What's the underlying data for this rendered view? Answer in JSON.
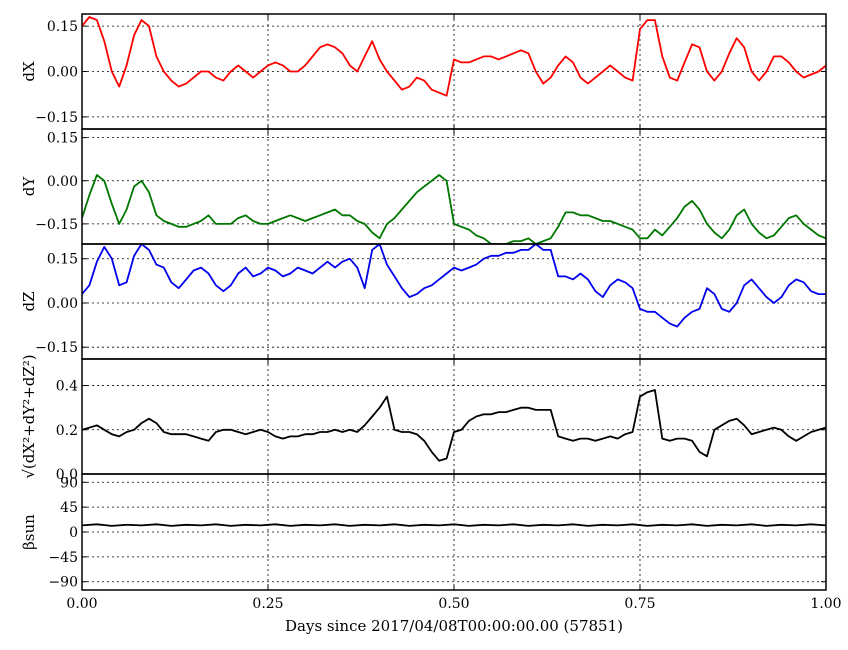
{
  "chart_data": {
    "type": "line",
    "xlabel": "Days since 2017/04/08T00:00:00.00 (57851)",
    "xlim": [
      0,
      1
    ],
    "xticks": [
      "0.00",
      "0.25",
      "0.50",
      "0.75",
      "1.00"
    ],
    "xtick_values": [
      0,
      0.25,
      0.5,
      0.75,
      1.0
    ],
    "grid": true,
    "panels": [
      {
        "ylabel": "dX",
        "color": "#ff0000",
        "ylim": [
          -0.19,
          0.19
        ],
        "yticks": [
          "0.15",
          "0.00",
          "−0.15"
        ],
        "ytick_values": [
          0.15,
          0.0,
          -0.15
        ],
        "x": [
          0.0,
          0.01,
          0.02,
          0.03,
          0.04,
          0.05,
          0.06,
          0.07,
          0.08,
          0.09,
          0.1,
          0.11,
          0.12,
          0.13,
          0.14,
          0.15,
          0.16,
          0.17,
          0.18,
          0.19,
          0.2,
          0.21,
          0.22,
          0.23,
          0.24,
          0.25,
          0.26,
          0.27,
          0.28,
          0.29,
          0.3,
          0.31,
          0.32,
          0.33,
          0.34,
          0.35,
          0.36,
          0.37,
          0.38,
          0.39,
          0.4,
          0.41,
          0.42,
          0.43,
          0.44,
          0.45,
          0.46,
          0.47,
          0.48,
          0.49,
          0.5,
          0.51,
          0.52,
          0.53,
          0.54,
          0.55,
          0.56,
          0.57,
          0.58,
          0.59,
          0.6,
          0.61,
          0.62,
          0.63,
          0.64,
          0.65,
          0.66,
          0.67,
          0.68,
          0.69,
          0.7,
          0.71,
          0.72,
          0.73,
          0.74,
          0.75,
          0.76,
          0.77,
          0.78,
          0.79,
          0.8,
          0.81,
          0.82,
          0.83,
          0.84,
          0.85,
          0.86,
          0.87,
          0.88,
          0.89,
          0.9,
          0.91,
          0.92,
          0.93,
          0.94,
          0.95,
          0.96,
          0.97,
          0.98,
          0.99,
          1.0
        ],
        "y": [
          0.15,
          0.18,
          0.17,
          0.1,
          0.0,
          -0.05,
          0.02,
          0.12,
          0.17,
          0.15,
          0.05,
          0.0,
          -0.03,
          -0.05,
          -0.04,
          -0.02,
          0.0,
          0.0,
          -0.02,
          -0.03,
          0.0,
          0.02,
          0.0,
          -0.02,
          0.0,
          0.02,
          0.03,
          0.02,
          0.0,
          0.0,
          0.02,
          0.05,
          0.08,
          0.09,
          0.08,
          0.06,
          0.02,
          0.0,
          0.05,
          0.1,
          0.04,
          0.0,
          -0.03,
          -0.06,
          -0.05,
          -0.02,
          -0.03,
          -0.06,
          -0.07,
          -0.08,
          0.04,
          0.03,
          0.03,
          0.04,
          0.05,
          0.05,
          0.04,
          0.05,
          0.06,
          0.07,
          0.06,
          0.0,
          -0.04,
          -0.02,
          0.02,
          0.05,
          0.03,
          -0.02,
          -0.04,
          -0.02,
          0.0,
          0.02,
          0.0,
          -0.02,
          -0.03,
          0.14,
          0.17,
          0.17,
          0.05,
          -0.02,
          -0.03,
          0.03,
          0.09,
          0.08,
          0.0,
          -0.03,
          0.0,
          0.06,
          0.11,
          0.08,
          0.0,
          -0.03,
          0.0,
          0.05,
          0.05,
          0.03,
          0.0,
          -0.02,
          -0.01,
          0.0,
          0.02
        ]
      },
      {
        "ylabel": "dY",
        "color": "#007700",
        "ylim": [
          -0.22,
          0.18
        ],
        "yticks": [
          "0.15",
          "0.00",
          "−0.15"
        ],
        "ytick_values": [
          0.15,
          0.0,
          -0.15
        ],
        "x": [
          0.0,
          0.01,
          0.02,
          0.03,
          0.04,
          0.05,
          0.06,
          0.07,
          0.08,
          0.09,
          0.1,
          0.11,
          0.12,
          0.13,
          0.14,
          0.15,
          0.16,
          0.17,
          0.18,
          0.19,
          0.2,
          0.21,
          0.22,
          0.23,
          0.24,
          0.25,
          0.26,
          0.27,
          0.28,
          0.29,
          0.3,
          0.31,
          0.32,
          0.33,
          0.34,
          0.35,
          0.36,
          0.37,
          0.38,
          0.39,
          0.4,
          0.41,
          0.42,
          0.43,
          0.44,
          0.45,
          0.46,
          0.47,
          0.48,
          0.49,
          0.5,
          0.51,
          0.52,
          0.53,
          0.54,
          0.55,
          0.56,
          0.57,
          0.58,
          0.59,
          0.6,
          0.61,
          0.62,
          0.63,
          0.64,
          0.65,
          0.66,
          0.67,
          0.68,
          0.69,
          0.7,
          0.71,
          0.72,
          0.73,
          0.74,
          0.75,
          0.76,
          0.77,
          0.78,
          0.79,
          0.8,
          0.81,
          0.82,
          0.83,
          0.84,
          0.85,
          0.86,
          0.87,
          0.88,
          0.89,
          0.9,
          0.91,
          0.92,
          0.93,
          0.94,
          0.95,
          0.96,
          0.97,
          0.98,
          0.99,
          1.0
        ],
        "y": [
          -0.13,
          -0.05,
          0.02,
          0.0,
          -0.08,
          -0.15,
          -0.1,
          -0.02,
          0.0,
          -0.04,
          -0.12,
          -0.14,
          -0.15,
          -0.16,
          -0.16,
          -0.15,
          -0.14,
          -0.12,
          -0.15,
          -0.15,
          -0.15,
          -0.13,
          -0.12,
          -0.14,
          -0.15,
          -0.15,
          -0.14,
          -0.13,
          -0.12,
          -0.13,
          -0.14,
          -0.13,
          -0.12,
          -0.11,
          -0.1,
          -0.12,
          -0.12,
          -0.14,
          -0.15,
          -0.18,
          -0.2,
          -0.15,
          -0.13,
          -0.1,
          -0.07,
          -0.04,
          -0.02,
          0.0,
          0.02,
          0.0,
          -0.15,
          -0.16,
          -0.17,
          -0.19,
          -0.2,
          -0.22,
          -0.22,
          -0.22,
          -0.21,
          -0.21,
          -0.2,
          -0.22,
          -0.21,
          -0.2,
          -0.16,
          -0.11,
          -0.11,
          -0.12,
          -0.12,
          -0.13,
          -0.14,
          -0.14,
          -0.15,
          -0.16,
          -0.17,
          -0.2,
          -0.2,
          -0.17,
          -0.19,
          -0.16,
          -0.13,
          -0.09,
          -0.07,
          -0.1,
          -0.15,
          -0.18,
          -0.2,
          -0.17,
          -0.12,
          -0.1,
          -0.15,
          -0.18,
          -0.2,
          -0.19,
          -0.16,
          -0.13,
          -0.12,
          -0.15,
          -0.17,
          -0.19,
          -0.2
        ]
      },
      {
        "ylabel": "dZ",
        "color": "#0000ee",
        "ylim": [
          -0.19,
          0.2
        ],
        "yticks": [
          "0.15",
          "0.00",
          "−0.15"
        ],
        "ytick_values": [
          0.15,
          0.0,
          -0.15
        ],
        "x": [
          0.0,
          0.01,
          0.02,
          0.03,
          0.04,
          0.05,
          0.06,
          0.07,
          0.08,
          0.09,
          0.1,
          0.11,
          0.12,
          0.13,
          0.14,
          0.15,
          0.16,
          0.17,
          0.18,
          0.19,
          0.2,
          0.21,
          0.22,
          0.23,
          0.24,
          0.25,
          0.26,
          0.27,
          0.28,
          0.29,
          0.3,
          0.31,
          0.32,
          0.33,
          0.34,
          0.35,
          0.36,
          0.37,
          0.38,
          0.39,
          0.4,
          0.41,
          0.42,
          0.43,
          0.44,
          0.45,
          0.46,
          0.47,
          0.48,
          0.49,
          0.5,
          0.51,
          0.52,
          0.53,
          0.54,
          0.55,
          0.56,
          0.57,
          0.58,
          0.59,
          0.6,
          0.61,
          0.62,
          0.63,
          0.64,
          0.65,
          0.66,
          0.67,
          0.68,
          0.69,
          0.7,
          0.71,
          0.72,
          0.73,
          0.74,
          0.75,
          0.76,
          0.77,
          0.78,
          0.79,
          0.8,
          0.81,
          0.82,
          0.83,
          0.84,
          0.85,
          0.86,
          0.87,
          0.88,
          0.89,
          0.9,
          0.91,
          0.92,
          0.93,
          0.94,
          0.95,
          0.96,
          0.97,
          0.98,
          0.99,
          1.0
        ],
        "y": [
          0.03,
          0.06,
          0.14,
          0.19,
          0.15,
          0.06,
          0.07,
          0.16,
          0.2,
          0.18,
          0.13,
          0.12,
          0.07,
          0.05,
          0.08,
          0.11,
          0.12,
          0.1,
          0.06,
          0.04,
          0.06,
          0.1,
          0.12,
          0.09,
          0.1,
          0.12,
          0.11,
          0.09,
          0.1,
          0.12,
          0.11,
          0.1,
          0.12,
          0.14,
          0.12,
          0.14,
          0.15,
          0.12,
          0.05,
          0.18,
          0.2,
          0.13,
          0.09,
          0.05,
          0.02,
          0.03,
          0.05,
          0.06,
          0.08,
          0.1,
          0.12,
          0.11,
          0.12,
          0.13,
          0.15,
          0.16,
          0.16,
          0.17,
          0.17,
          0.18,
          0.18,
          0.2,
          0.18,
          0.18,
          0.09,
          0.09,
          0.08,
          0.1,
          0.08,
          0.04,
          0.02,
          0.06,
          0.08,
          0.07,
          0.05,
          -0.02,
          -0.03,
          -0.03,
          -0.05,
          -0.07,
          -0.08,
          -0.05,
          -0.03,
          -0.02,
          0.05,
          0.03,
          -0.02,
          -0.03,
          0.0,
          0.06,
          0.08,
          0.05,
          0.02,
          0.0,
          0.02,
          0.06,
          0.08,
          0.07,
          0.04,
          0.03,
          0.03
        ]
      },
      {
        "ylabel": "√(dX²+dY²+dZ²)",
        "color": "#000000",
        "ylim": [
          0.0,
          0.52
        ],
        "yticks": [
          "0.4",
          "0.2",
          "0.0"
        ],
        "ytick_values": [
          0.4,
          0.2,
          0.0
        ],
        "x": [
          0.0,
          0.01,
          0.02,
          0.03,
          0.04,
          0.05,
          0.06,
          0.07,
          0.08,
          0.09,
          0.1,
          0.11,
          0.12,
          0.13,
          0.14,
          0.15,
          0.16,
          0.17,
          0.18,
          0.19,
          0.2,
          0.21,
          0.22,
          0.23,
          0.24,
          0.25,
          0.26,
          0.27,
          0.28,
          0.29,
          0.3,
          0.31,
          0.32,
          0.33,
          0.34,
          0.35,
          0.36,
          0.37,
          0.38,
          0.39,
          0.4,
          0.41,
          0.42,
          0.43,
          0.44,
          0.45,
          0.46,
          0.47,
          0.48,
          0.49,
          0.5,
          0.51,
          0.52,
          0.53,
          0.54,
          0.55,
          0.56,
          0.57,
          0.58,
          0.59,
          0.6,
          0.61,
          0.62,
          0.63,
          0.64,
          0.65,
          0.66,
          0.67,
          0.68,
          0.69,
          0.7,
          0.71,
          0.72,
          0.73,
          0.74,
          0.75,
          0.76,
          0.77,
          0.78,
          0.79,
          0.8,
          0.81,
          0.82,
          0.83,
          0.84,
          0.85,
          0.86,
          0.87,
          0.88,
          0.89,
          0.9,
          0.91,
          0.92,
          0.93,
          0.94,
          0.95,
          0.96,
          0.97,
          0.98,
          0.99,
          1.0
        ],
        "y": [
          0.2,
          0.21,
          0.22,
          0.2,
          0.18,
          0.17,
          0.19,
          0.2,
          0.23,
          0.25,
          0.23,
          0.19,
          0.18,
          0.18,
          0.18,
          0.17,
          0.16,
          0.15,
          0.19,
          0.2,
          0.2,
          0.19,
          0.18,
          0.19,
          0.2,
          0.19,
          0.17,
          0.16,
          0.17,
          0.17,
          0.18,
          0.18,
          0.19,
          0.19,
          0.2,
          0.19,
          0.2,
          0.19,
          0.22,
          0.26,
          0.3,
          0.35,
          0.2,
          0.19,
          0.19,
          0.18,
          0.15,
          0.1,
          0.06,
          0.07,
          0.19,
          0.2,
          0.24,
          0.26,
          0.27,
          0.27,
          0.28,
          0.28,
          0.29,
          0.3,
          0.3,
          0.29,
          0.29,
          0.29,
          0.17,
          0.16,
          0.15,
          0.16,
          0.16,
          0.15,
          0.16,
          0.17,
          0.16,
          0.18,
          0.19,
          0.35,
          0.37,
          0.38,
          0.16,
          0.15,
          0.16,
          0.16,
          0.15,
          0.1,
          0.08,
          0.2,
          0.22,
          0.24,
          0.25,
          0.22,
          0.18,
          0.19,
          0.2,
          0.21,
          0.2,
          0.17,
          0.15,
          0.17,
          0.19,
          0.2,
          0.21
        ]
      },
      {
        "ylabel": "βsun",
        "color": "#000000",
        "ylim": [
          -105,
          105
        ],
        "yticks": [
          "90",
          "45",
          "0",
          "−45",
          "−90"
        ],
        "ytick_values": [
          90,
          45,
          0,
          -45,
          -90
        ],
        "x": [
          0.0,
          0.02,
          0.04,
          0.06,
          0.08,
          0.1,
          0.12,
          0.14,
          0.16,
          0.18,
          0.2,
          0.22,
          0.24,
          0.26,
          0.28,
          0.3,
          0.32,
          0.34,
          0.36,
          0.38,
          0.4,
          0.42,
          0.44,
          0.46,
          0.48,
          0.5,
          0.52,
          0.54,
          0.56,
          0.58,
          0.6,
          0.62,
          0.64,
          0.66,
          0.68,
          0.7,
          0.72,
          0.74,
          0.76,
          0.78,
          0.8,
          0.82,
          0.84,
          0.86,
          0.88,
          0.9,
          0.92,
          0.94,
          0.96,
          0.98,
          1.0
        ],
        "y": [
          12,
          14,
          11,
          13,
          12,
          14,
          11,
          13,
          12,
          14,
          11,
          13,
          12,
          14,
          11,
          13,
          12,
          14,
          11,
          13,
          12,
          14,
          11,
          13,
          12,
          14,
          11,
          13,
          12,
          14,
          11,
          13,
          12,
          14,
          11,
          13,
          12,
          14,
          11,
          13,
          12,
          14,
          11,
          13,
          12,
          14,
          11,
          13,
          12,
          14,
          12
        ]
      }
    ]
  }
}
